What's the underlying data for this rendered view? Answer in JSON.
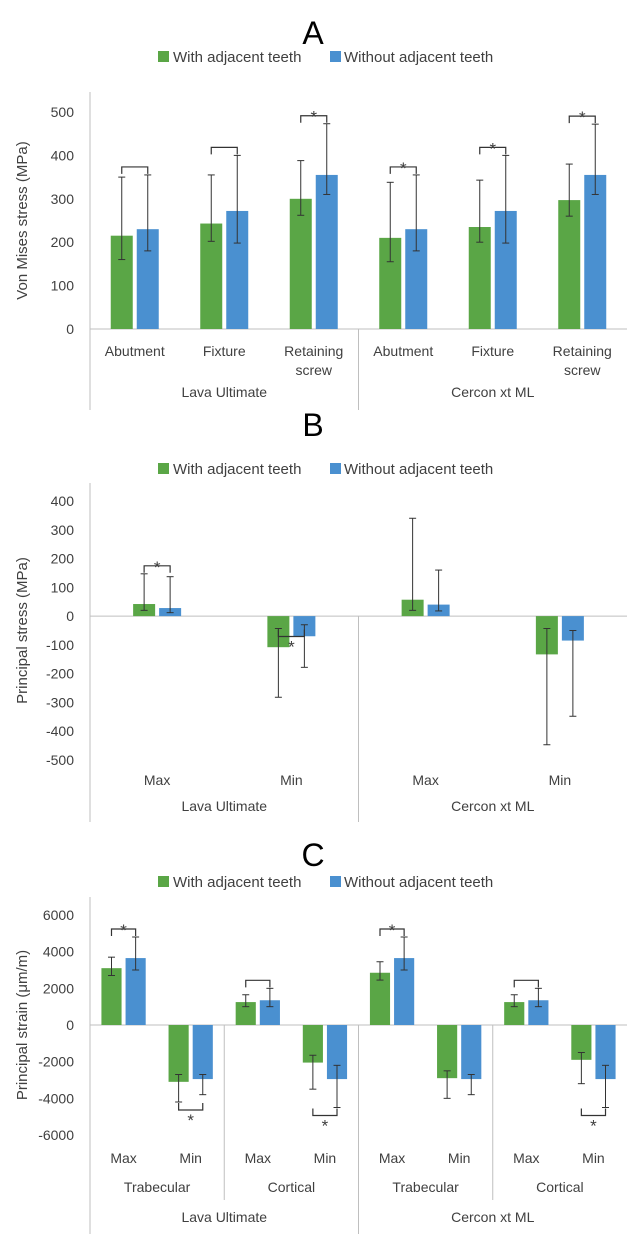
{
  "colors": {
    "series1": "#5aa646",
    "series2": "#4a90d0",
    "axis": "#bfbfbf",
    "text": "#404040",
    "error": "#333333",
    "bracket": "#333333"
  },
  "chart_data": [
    {
      "panel": "A",
      "type": "bar",
      "ylabel": "Von Mises stress (MPa)",
      "ylim": [
        0,
        500
      ],
      "yticks": [
        0,
        100,
        200,
        300,
        400,
        500
      ],
      "legend": {
        "placement": "top",
        "entries": [
          "With adjacent teeth",
          "Without adjacent teeth"
        ]
      },
      "categories": [
        "Abutment",
        "Fixture",
        "Retaining screw",
        "Abutment",
        "Fixture",
        "Retaining screw"
      ],
      "groups": [
        {
          "label": "Lava Ultimate",
          "count": 3
        },
        {
          "label": "Cercon xt ML",
          "count": 3
        }
      ],
      "series": [
        {
          "name": "With adjacent teeth",
          "values": [
            215,
            243,
            300,
            210,
            235,
            297
          ],
          "err_low": [
            160,
            202,
            262,
            155,
            200,
            260
          ],
          "err_high": [
            350,
            355,
            388,
            338,
            343,
            380
          ]
        },
        {
          "name": "Without adjacent teeth",
          "values": [
            230,
            272,
            355,
            230,
            272,
            355
          ],
          "err_low": [
            180,
            198,
            310,
            180,
            198,
            310
          ],
          "err_high": [
            355,
            400,
            473,
            355,
            400,
            472
          ]
        }
      ],
      "significance": [
        {
          "category": 0,
          "position": "above",
          "star": ""
        },
        {
          "category": 1,
          "position": "above",
          "star": ""
        },
        {
          "category": 2,
          "position": "above",
          "star": "*"
        },
        {
          "category": 3,
          "position": "above",
          "star": "*"
        },
        {
          "category": 4,
          "position": "above",
          "star": "*"
        },
        {
          "category": 5,
          "position": "above",
          "star": "*"
        }
      ]
    },
    {
      "panel": "B",
      "type": "bar",
      "ylabel": "Principal stress (MPa)",
      "ylim": [
        -500,
        400
      ],
      "yticks": [
        -500,
        -400,
        -300,
        -200,
        -100,
        0,
        100,
        200,
        300,
        400
      ],
      "legend": {
        "placement": "top",
        "entries": [
          "With adjacent teeth",
          "Without adjacent teeth"
        ]
      },
      "categories": [
        "Max",
        "Min",
        "Max",
        "Min"
      ],
      "groups": [
        {
          "label": "Lava Ultimate",
          "count": 2
        },
        {
          "label": "Cercon xt ML",
          "count": 2
        }
      ],
      "series": [
        {
          "name": "With adjacent teeth",
          "values": [
            42,
            -108,
            57,
            -133
          ],
          "err_low": [
            20,
            -282,
            20,
            -447
          ],
          "err_high": [
            147,
            -43,
            340,
            -43
          ]
        },
        {
          "name": "Without adjacent teeth",
          "values": [
            28,
            -70,
            40,
            -85
          ],
          "err_low": [
            12,
            -178,
            18,
            -348
          ],
          "err_high": [
            137,
            -30,
            160,
            -50
          ]
        }
      ],
      "significance": [
        {
          "category": 0,
          "position": "above",
          "star": "*"
        },
        {
          "category": 1,
          "position": "below",
          "star": "*"
        }
      ]
    },
    {
      "panel": "C",
      "type": "bar",
      "ylabel": "Principal strain (μm/m)",
      "ylim": [
        -6000,
        6000
      ],
      "yticks": [
        -6000,
        -4000,
        -2000,
        0,
        2000,
        4000,
        6000
      ],
      "legend": {
        "placement": "top",
        "entries": [
          "With adjacent teeth",
          "Without adjacent teeth"
        ]
      },
      "categories": [
        "Max",
        "Min",
        "Max",
        "Min",
        "Max",
        "Min",
        "Max",
        "Min"
      ],
      "subgroups": [
        {
          "label": "Trabecular",
          "count": 2
        },
        {
          "label": "Cortical",
          "count": 2
        },
        {
          "label": "Trabecular",
          "count": 2
        },
        {
          "label": "Cortical",
          "count": 2
        }
      ],
      "groups": [
        {
          "label": "Lava Ultimate",
          "count": 4
        },
        {
          "label": "Cercon xt ML",
          "count": 4
        }
      ],
      "series": [
        {
          "name": "With adjacent teeth",
          "values": [
            3100,
            -3100,
            1250,
            -2050,
            2850,
            -2900,
            1250,
            -1900
          ],
          "err_low": [
            2700,
            -2700,
            1000,
            -1650,
            2450,
            -2500,
            1000,
            -1500
          ],
          "err_high": [
            3700,
            -4200,
            1650,
            -3500,
            3450,
            -4000,
            1650,
            -3200
          ]
        },
        {
          "name": "Without adjacent teeth",
          "values": [
            3650,
            -2950,
            1350,
            -2950,
            3650,
            -2950,
            1350,
            -2950
          ],
          "err_low": [
            3000,
            -2700,
            1000,
            -2200,
            3000,
            -2700,
            1000,
            -2200
          ],
          "err_high": [
            4800,
            -3800,
            2000,
            -4500,
            4800,
            -3800,
            2000,
            -4500
          ]
        }
      ],
      "significance": [
        {
          "category": 0,
          "position": "above",
          "star": "*"
        },
        {
          "category": 1,
          "position": "below",
          "star": "*"
        },
        {
          "category": 2,
          "position": "above",
          "star": ""
        },
        {
          "category": 3,
          "position": "below",
          "star": "*"
        },
        {
          "category": 4,
          "position": "above",
          "star": "*"
        },
        {
          "category": 6,
          "position": "above",
          "star": ""
        },
        {
          "category": 7,
          "position": "below",
          "star": "*"
        }
      ]
    }
  ]
}
